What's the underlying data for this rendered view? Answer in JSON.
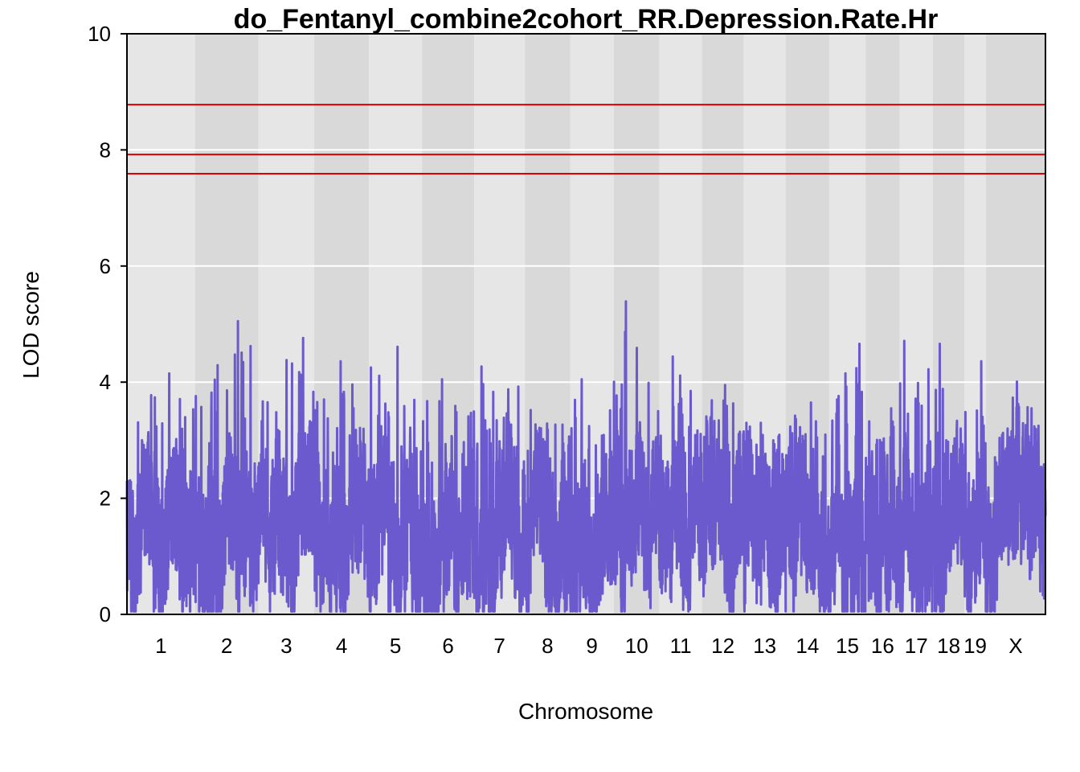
{
  "chart_data": {
    "type": "line",
    "title": "do_Fentanyl_combine2cohort_RR.Depression.Rate.Hr",
    "xlabel": "Chromosome",
    "ylabel": "LOD score",
    "ylim": [
      0,
      10
    ],
    "yticks": [
      "0",
      "2",
      "4",
      "6",
      "8",
      "10"
    ],
    "grid": true,
    "background_colors": {
      "light": "#e6e6e6",
      "dark": "#d9d9d9"
    },
    "line_color": "#6a5acd",
    "threshold_color": "#dd0000",
    "thresholds": [
      8.78,
      7.92,
      7.59
    ],
    "chromosomes": [
      {
        "label": "1",
        "start": 0,
        "end": 195,
        "peak": 4.15
      },
      {
        "label": "2",
        "start": 195,
        "end": 377,
        "peak": 5.05
      },
      {
        "label": "3",
        "start": 377,
        "end": 537,
        "peak": 4.76
      },
      {
        "label": "4",
        "start": 537,
        "end": 694,
        "peak": 4.36
      },
      {
        "label": "5",
        "start": 694,
        "end": 846,
        "peak": 4.61
      },
      {
        "label": "6",
        "start": 846,
        "end": 996,
        "peak": 4.05
      },
      {
        "label": "7",
        "start": 996,
        "end": 1141,
        "peak": 4.27
      },
      {
        "label": "8",
        "start": 1141,
        "end": 1271,
        "peak": 3.52
      },
      {
        "label": "9",
        "start": 1271,
        "end": 1396,
        "peak": 4.05
      },
      {
        "label": "10",
        "start": 1396,
        "end": 1527,
        "peak": 5.39
      },
      {
        "label": "11",
        "start": 1527,
        "end": 1649,
        "peak": 4.44
      },
      {
        "label": "12",
        "start": 1649,
        "end": 1769,
        "peak": 3.95
      },
      {
        "label": "13",
        "start": 1769,
        "end": 1889,
        "peak": 3.3
      },
      {
        "label": "14",
        "start": 1889,
        "end": 2014,
        "peak": 3.65
      },
      {
        "label": "15",
        "start": 2014,
        "end": 2118,
        "peak": 4.66
      },
      {
        "label": "16",
        "start": 2118,
        "end": 2216,
        "peak": 3.55
      },
      {
        "label": "17",
        "start": 2216,
        "end": 2311,
        "peak": 4.71
      },
      {
        "label": "18",
        "start": 2311,
        "end": 2402,
        "peak": 4.66
      },
      {
        "label": "19",
        "start": 2402,
        "end": 2463,
        "peak": 4.36
      },
      {
        "label": "X",
        "start": 2463,
        "end": 2634,
        "peak": 4.01
      }
    ]
  }
}
